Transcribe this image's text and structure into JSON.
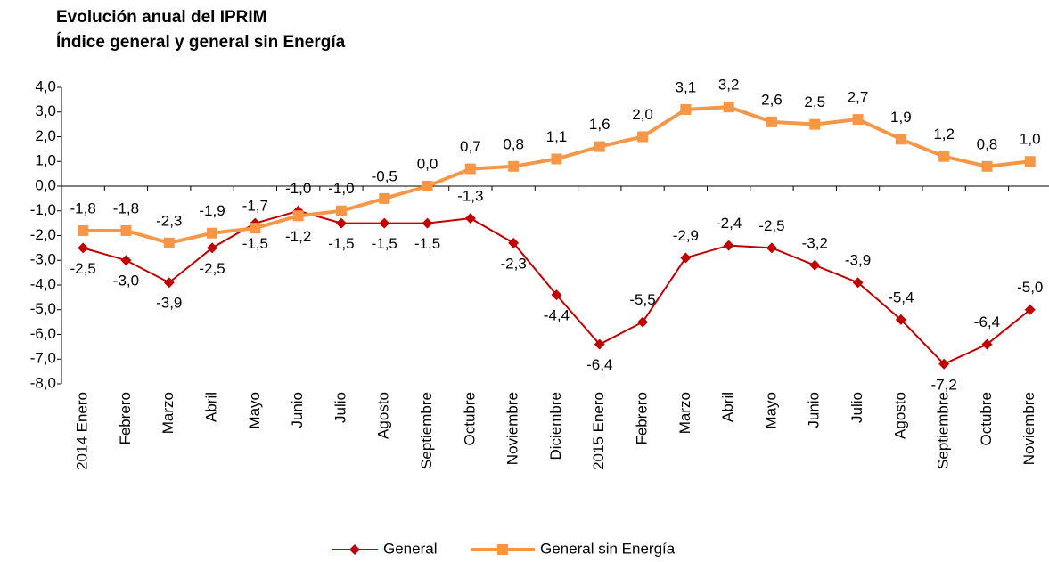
{
  "chart_data": {
    "type": "line",
    "title": "Evolución anual del IPRIM",
    "subtitle": "Índice general y general sin Energía",
    "categories": [
      "2014 Enero",
      "Febrero",
      "Marzo",
      "Abril",
      "Mayo",
      "Junio",
      "Julio",
      "Agosto",
      "Septiembre",
      "Octubre",
      "Noviembre",
      "Diciembre",
      "2015 Enero",
      "Febrero",
      "Marzo",
      "Abril",
      "Mayo",
      "Junio",
      "Julio",
      "Agosto",
      "Septiembre",
      "Octubre",
      "Noviembre"
    ],
    "series": [
      {
        "name": "General",
        "color": "#c00000",
        "marker": "diamond",
        "values": [
          -2.5,
          -3.0,
          -3.9,
          -2.5,
          -1.5,
          -1.0,
          -1.5,
          -1.5,
          -1.5,
          -1.3,
          -2.3,
          -4.4,
          -6.4,
          -5.5,
          -2.9,
          -2.4,
          -2.5,
          -3.2,
          -3.9,
          -5.4,
          -7.2,
          -6.4,
          -5.0
        ],
        "value_labels": [
          "-2,5",
          "-3,0",
          "-3,9",
          "-2,5",
          "-1,5",
          "-1,0",
          "-1,5",
          "-1,5",
          "-1,5",
          "-1,3",
          "-2,3",
          "-4,4",
          "-6,4",
          "-5,5",
          "-2,9",
          "-2,4",
          "-2,5",
          "-3,2",
          "-3,9",
          "-5,4",
          "-7,2",
          "-6,4",
          "-5,0"
        ]
      },
      {
        "name": "General sin Energía",
        "color": "#f79646",
        "marker": "square",
        "values": [
          -1.8,
          -1.8,
          -2.3,
          -1.9,
          -1.7,
          -1.2,
          -1.0,
          -0.5,
          0.0,
          0.7,
          0.8,
          1.1,
          1.6,
          2.0,
          3.1,
          3.2,
          2.6,
          2.5,
          2.7,
          1.9,
          1.2,
          0.8,
          1.0
        ],
        "value_labels": [
          "-1,8",
          "-1,8",
          "-2,3",
          "-1,9",
          "-1,7",
          "-1,2",
          "-1,0",
          "-0,5",
          "0,0",
          "0,7",
          "0,8",
          "1,1",
          "1,6",
          "2,0",
          "3,1",
          "3,2",
          "2,6",
          "2,5",
          "2,7",
          "1,9",
          "1,2",
          "0,8",
          "1,0"
        ]
      }
    ],
    "ylim": [
      -8,
      4
    ],
    "yticks": [
      {
        "value": 4,
        "label": "4,0"
      },
      {
        "value": 3,
        "label": "3,0"
      },
      {
        "value": 2,
        "label": "2,0"
      },
      {
        "value": 1,
        "label": "1,0"
      },
      {
        "value": 0,
        "label": "0,0"
      },
      {
        "value": -1,
        "label": "-1,0"
      },
      {
        "value": -2,
        "label": "-2,0"
      },
      {
        "value": -3,
        "label": "-3,0"
      },
      {
        "value": -4,
        "label": "-4,0"
      },
      {
        "value": -5,
        "label": "-5,0"
      },
      {
        "value": -6,
        "label": "-6,0"
      },
      {
        "value": -7,
        "label": "-7,0"
      },
      {
        "value": -8,
        "label": "-8,0"
      }
    ],
    "grid": false,
    "legend": "bottom"
  }
}
